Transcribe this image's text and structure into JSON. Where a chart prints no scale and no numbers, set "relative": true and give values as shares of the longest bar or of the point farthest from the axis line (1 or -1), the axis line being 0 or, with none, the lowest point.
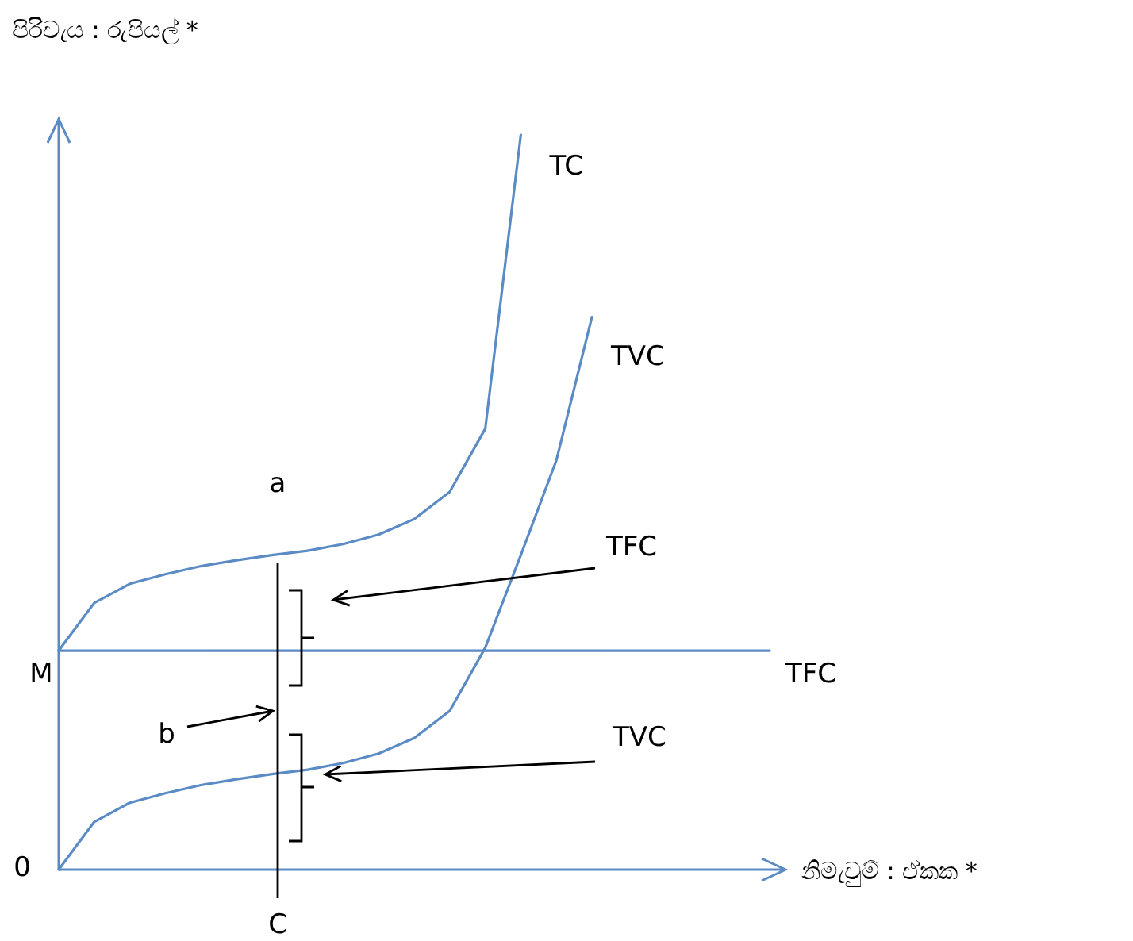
{
  "chart_data": {
    "type": "line",
    "relative": true,
    "ylabel": "පිරිවැය : රුපියල් *",
    "xlabel": "නිමැවුම් : ඒකක *",
    "categories": [
      null,
      null,
      null,
      null,
      null,
      null,
      null,
      null,
      null,
      null,
      null,
      null,
      null,
      null,
      null,
      null,
      null,
      null,
      null,
      null,
      null
    ],
    "series": [
      {
        "name": "TC",
        "color": "#5b8bc4",
        "values": [
          0.298,
          0.363,
          0.389,
          0.402,
          0.413,
          0.421,
          0.428,
          0.434,
          0.443,
          0.456,
          0.477,
          0.514,
          0.6,
          1.0,
          null,
          null,
          null,
          null,
          null,
          null,
          null
        ]
      },
      {
        "name": "TVC",
        "color": "#5b8bc4",
        "values": [
          0,
          0.065,
          0.091,
          0.104,
          0.115,
          0.123,
          0.13,
          0.136,
          0.145,
          0.158,
          0.179,
          0.216,
          0.302,
          0.428,
          0.557,
          0.752,
          null,
          null,
          null,
          null,
          null
        ]
      },
      {
        "name": "TFC",
        "color": "#5b8bc4",
        "values": [
          0.298,
          0.298,
          0.298,
          0.298,
          0.298,
          0.298,
          0.298,
          0.298,
          0.298,
          0.298,
          0.298,
          0.298,
          0.298,
          0.298,
          0.298,
          0.298,
          0.298,
          0.298,
          0.298,
          0.298,
          0.298
        ]
      }
    ],
    "annotations": [
      "a",
      "b",
      "M",
      "0",
      "C",
      "TFC",
      "TVC"
    ],
    "marker": "none",
    "line_style": "solid"
  }
}
